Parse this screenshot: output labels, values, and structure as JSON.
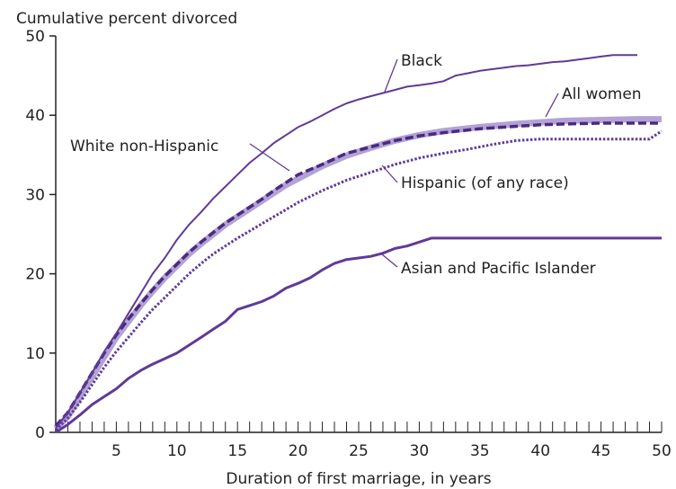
{
  "chart_data": {
    "type": "line",
    "title": "",
    "ylabel": "Cumulative percent divorced",
    "xlabel": "Duration of first marriage, in years",
    "xlim": [
      0,
      50
    ],
    "ylim": [
      0,
      50
    ],
    "x_ticks": [
      5,
      10,
      15,
      20,
      25,
      30,
      35,
      40,
      45,
      50
    ],
    "y_ticks": [
      0,
      10,
      20,
      30,
      40,
      50
    ],
    "grid": false,
    "legend": "direct labels",
    "series": [
      {
        "name": "All women",
        "color": "#b3a2d6",
        "style": "thick",
        "x": [
          0,
          1,
          2,
          3,
          4,
          5,
          6,
          7,
          8,
          9,
          10,
          11,
          12,
          13,
          14,
          15,
          16,
          17,
          18,
          19,
          20,
          22,
          24,
          26,
          28,
          30,
          32,
          35,
          38,
          40,
          42,
          45,
          48,
          50
        ],
        "values": [
          0.5,
          2,
          4.5,
          7,
          9.5,
          12,
          14,
          16,
          17.8,
          19.5,
          21,
          22.5,
          23.8,
          25,
          26.2,
          27.2,
          28.2,
          29.2,
          30.2,
          31.2,
          32,
          33.6,
          34.9,
          35.9,
          36.8,
          37.5,
          38,
          38.5,
          38.9,
          39.1,
          39.3,
          39.4,
          39.5,
          39.5
        ]
      },
      {
        "name": "White non-Hispanic",
        "color": "#4a2a7f",
        "style": "dashed",
        "x": [
          0,
          1,
          2,
          3,
          4,
          5,
          6,
          7,
          8,
          9,
          10,
          11,
          12,
          13,
          14,
          15,
          16,
          17,
          18,
          19,
          20,
          22,
          24,
          26,
          28,
          30,
          32,
          35,
          38,
          40,
          42,
          45,
          48,
          50
        ],
        "values": [
          0.8,
          2.5,
          5,
          7.5,
          10,
          12.3,
          14.3,
          16.2,
          18,
          19.7,
          21.2,
          22.7,
          24,
          25.2,
          26.4,
          27.4,
          28.4,
          29.4,
          30.5,
          31.5,
          32.5,
          33.8,
          35.2,
          36,
          36.8,
          37.4,
          37.8,
          38.3,
          38.6,
          38.8,
          38.9,
          39,
          39,
          39
        ]
      },
      {
        "name": "Black",
        "color": "#5f3a98",
        "style": "thin",
        "x": [
          0,
          1,
          2,
          3,
          4,
          5,
          6,
          7,
          8,
          9,
          10,
          11,
          12,
          13,
          14,
          15,
          16,
          17,
          18,
          19,
          20,
          21,
          22,
          23,
          24,
          25,
          26,
          27,
          28,
          29,
          30,
          31,
          32,
          33,
          34,
          35,
          36,
          37,
          38,
          39,
          40,
          41,
          42,
          43,
          44,
          45,
          46,
          47,
          48
        ],
        "values": [
          0.5,
          2.5,
          5,
          7.5,
          10.2,
          12.5,
          15,
          17.5,
          20,
          22,
          24.3,
          26.2,
          27.8,
          29.5,
          31,
          32.5,
          34,
          35.2,
          36.5,
          37.5,
          38.5,
          39.2,
          40,
          40.8,
          41.5,
          42,
          42.4,
          42.8,
          43.2,
          43.6,
          43.8,
          44,
          44.3,
          45,
          45.3,
          45.6,
          45.8,
          46,
          46.2,
          46.3,
          46.5,
          46.7,
          46.8,
          47,
          47.2,
          47.4,
          47.6,
          47.6,
          47.6
        ]
      },
      {
        "name": "Hispanic (of any race)",
        "color": "#5f3a98",
        "style": "dotted",
        "x": [
          0,
          1,
          2,
          3,
          4,
          5,
          6,
          7,
          8,
          9,
          10,
          11,
          12,
          13,
          14,
          15,
          16,
          17,
          18,
          19,
          20,
          22,
          24,
          26,
          28,
          30,
          32,
          34,
          36,
          38,
          40,
          42,
          44,
          46,
          48,
          49,
          50
        ],
        "values": [
          0.3,
          1.8,
          3.8,
          6,
          8.2,
          10.2,
          12,
          13.8,
          15.5,
          17,
          18.5,
          20,
          21.3,
          22.5,
          23.5,
          24.5,
          25.4,
          26.3,
          27.2,
          28.1,
          29,
          30.5,
          31.8,
          32.8,
          33.8,
          34.6,
          35.2,
          35.7,
          36.3,
          36.8,
          37,
          37,
          37,
          37,
          37,
          37,
          38
        ]
      },
      {
        "name": "Asian and Pacific Islander",
        "color": "#5f3a98",
        "style": "medium",
        "x": [
          0,
          1,
          2,
          3,
          4,
          5,
          6,
          7,
          8,
          9,
          10,
          11,
          12,
          13,
          14,
          15,
          16,
          17,
          18,
          19,
          20,
          21,
          22,
          23,
          24,
          25,
          26,
          27,
          28,
          29,
          30,
          31,
          35,
          40,
          45,
          50
        ],
        "values": [
          0,
          1,
          2.2,
          3.5,
          4.5,
          5.5,
          6.8,
          7.8,
          8.6,
          9.3,
          10,
          11,
          12,
          13,
          14,
          15.5,
          16,
          16.5,
          17.2,
          18.2,
          18.8,
          19.5,
          20.5,
          21.3,
          21.8,
          22,
          22.2,
          22.6,
          23.2,
          23.5,
          24,
          24.5,
          24.5,
          24.5,
          24.5,
          24.5
        ]
      }
    ]
  }
}
